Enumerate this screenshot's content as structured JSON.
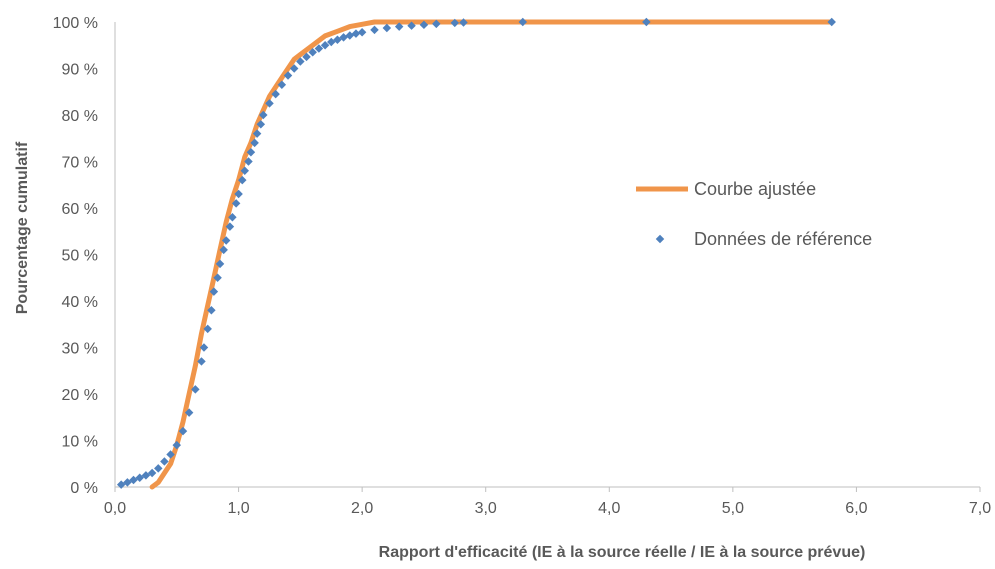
{
  "chart_data": {
    "type": "scatter",
    "xlabel": "Rapport d'efficacité (IE à la source réelle / IE à la source prévue)",
    "ylabel": "Pourcentage  cumulatif",
    "xlim": [
      0,
      7
    ],
    "ylim": [
      0,
      100
    ],
    "x_ticks": [
      "0,0",
      "1,0",
      "2,0",
      "3,0",
      "4,0",
      "5,0",
      "6,0",
      "7,0"
    ],
    "y_ticks": [
      "0 %",
      "10 %",
      "20 %",
      "30 %",
      "40 %",
      "50 %",
      "60 %",
      "70 %",
      "80 %",
      "90 %",
      "100 %"
    ],
    "grid": false,
    "legend_position": "right",
    "series": [
      {
        "name": "Courbe ajustée",
        "kind": "line",
        "color": "#F0954A",
        "x": [
          0.3,
          0.35,
          0.4,
          0.45,
          0.5,
          0.55,
          0.6,
          0.65,
          0.7,
          0.75,
          0.8,
          0.85,
          0.9,
          0.95,
          1.0,
          1.05,
          1.1,
          1.15,
          1.2,
          1.25,
          1.3,
          1.35,
          1.4,
          1.45,
          1.5,
          1.6,
          1.7,
          1.8,
          1.9,
          2.0,
          2.1,
          2.2,
          2.3,
          2.5,
          3.0,
          4.0,
          5.0,
          5.8
        ],
        "y": [
          0,
          1,
          3,
          5,
          9,
          14,
          20,
          26,
          33,
          39,
          45,
          51,
          57,
          62,
          66,
          71,
          74,
          78,
          81,
          84,
          86,
          88,
          90,
          92,
          93,
          95,
          97,
          98,
          99,
          99.5,
          100,
          100,
          100,
          100,
          100,
          100,
          100,
          100
        ]
      },
      {
        "name": "Données de référence",
        "kind": "scatter",
        "color": "#4F81BD",
        "x": [
          0.05,
          0.1,
          0.15,
          0.2,
          0.25,
          0.3,
          0.35,
          0.4,
          0.45,
          0.5,
          0.55,
          0.6,
          0.65,
          0.7,
          0.72,
          0.75,
          0.78,
          0.8,
          0.83,
          0.85,
          0.88,
          0.9,
          0.93,
          0.95,
          0.98,
          1.0,
          1.03,
          1.05,
          1.08,
          1.1,
          1.13,
          1.15,
          1.18,
          1.2,
          1.25,
          1.3,
          1.35,
          1.4,
          1.45,
          1.5,
          1.55,
          1.6,
          1.65,
          1.7,
          1.75,
          1.8,
          1.85,
          1.9,
          1.95,
          2.0,
          2.1,
          2.2,
          2.3,
          2.4,
          2.5,
          2.6,
          2.75,
          2.82,
          3.3,
          4.3,
          5.8
        ],
        "y": [
          0.5,
          1,
          1.5,
          2,
          2.5,
          3,
          4,
          5.5,
          7,
          9,
          12,
          16,
          21,
          27,
          30,
          34,
          38,
          42,
          45,
          48,
          51,
          53,
          56,
          58,
          61,
          63,
          66,
          68,
          70,
          72,
          74,
          76,
          78,
          80,
          82.5,
          84.5,
          86.5,
          88.5,
          90,
          91.5,
          92.5,
          93.5,
          94.3,
          95,
          95.7,
          96.2,
          96.7,
          97.1,
          97.5,
          97.8,
          98.3,
          98.7,
          99,
          99.2,
          99.4,
          99.6,
          99.8,
          99.9,
          100,
          100,
          100
        ]
      }
    ]
  }
}
